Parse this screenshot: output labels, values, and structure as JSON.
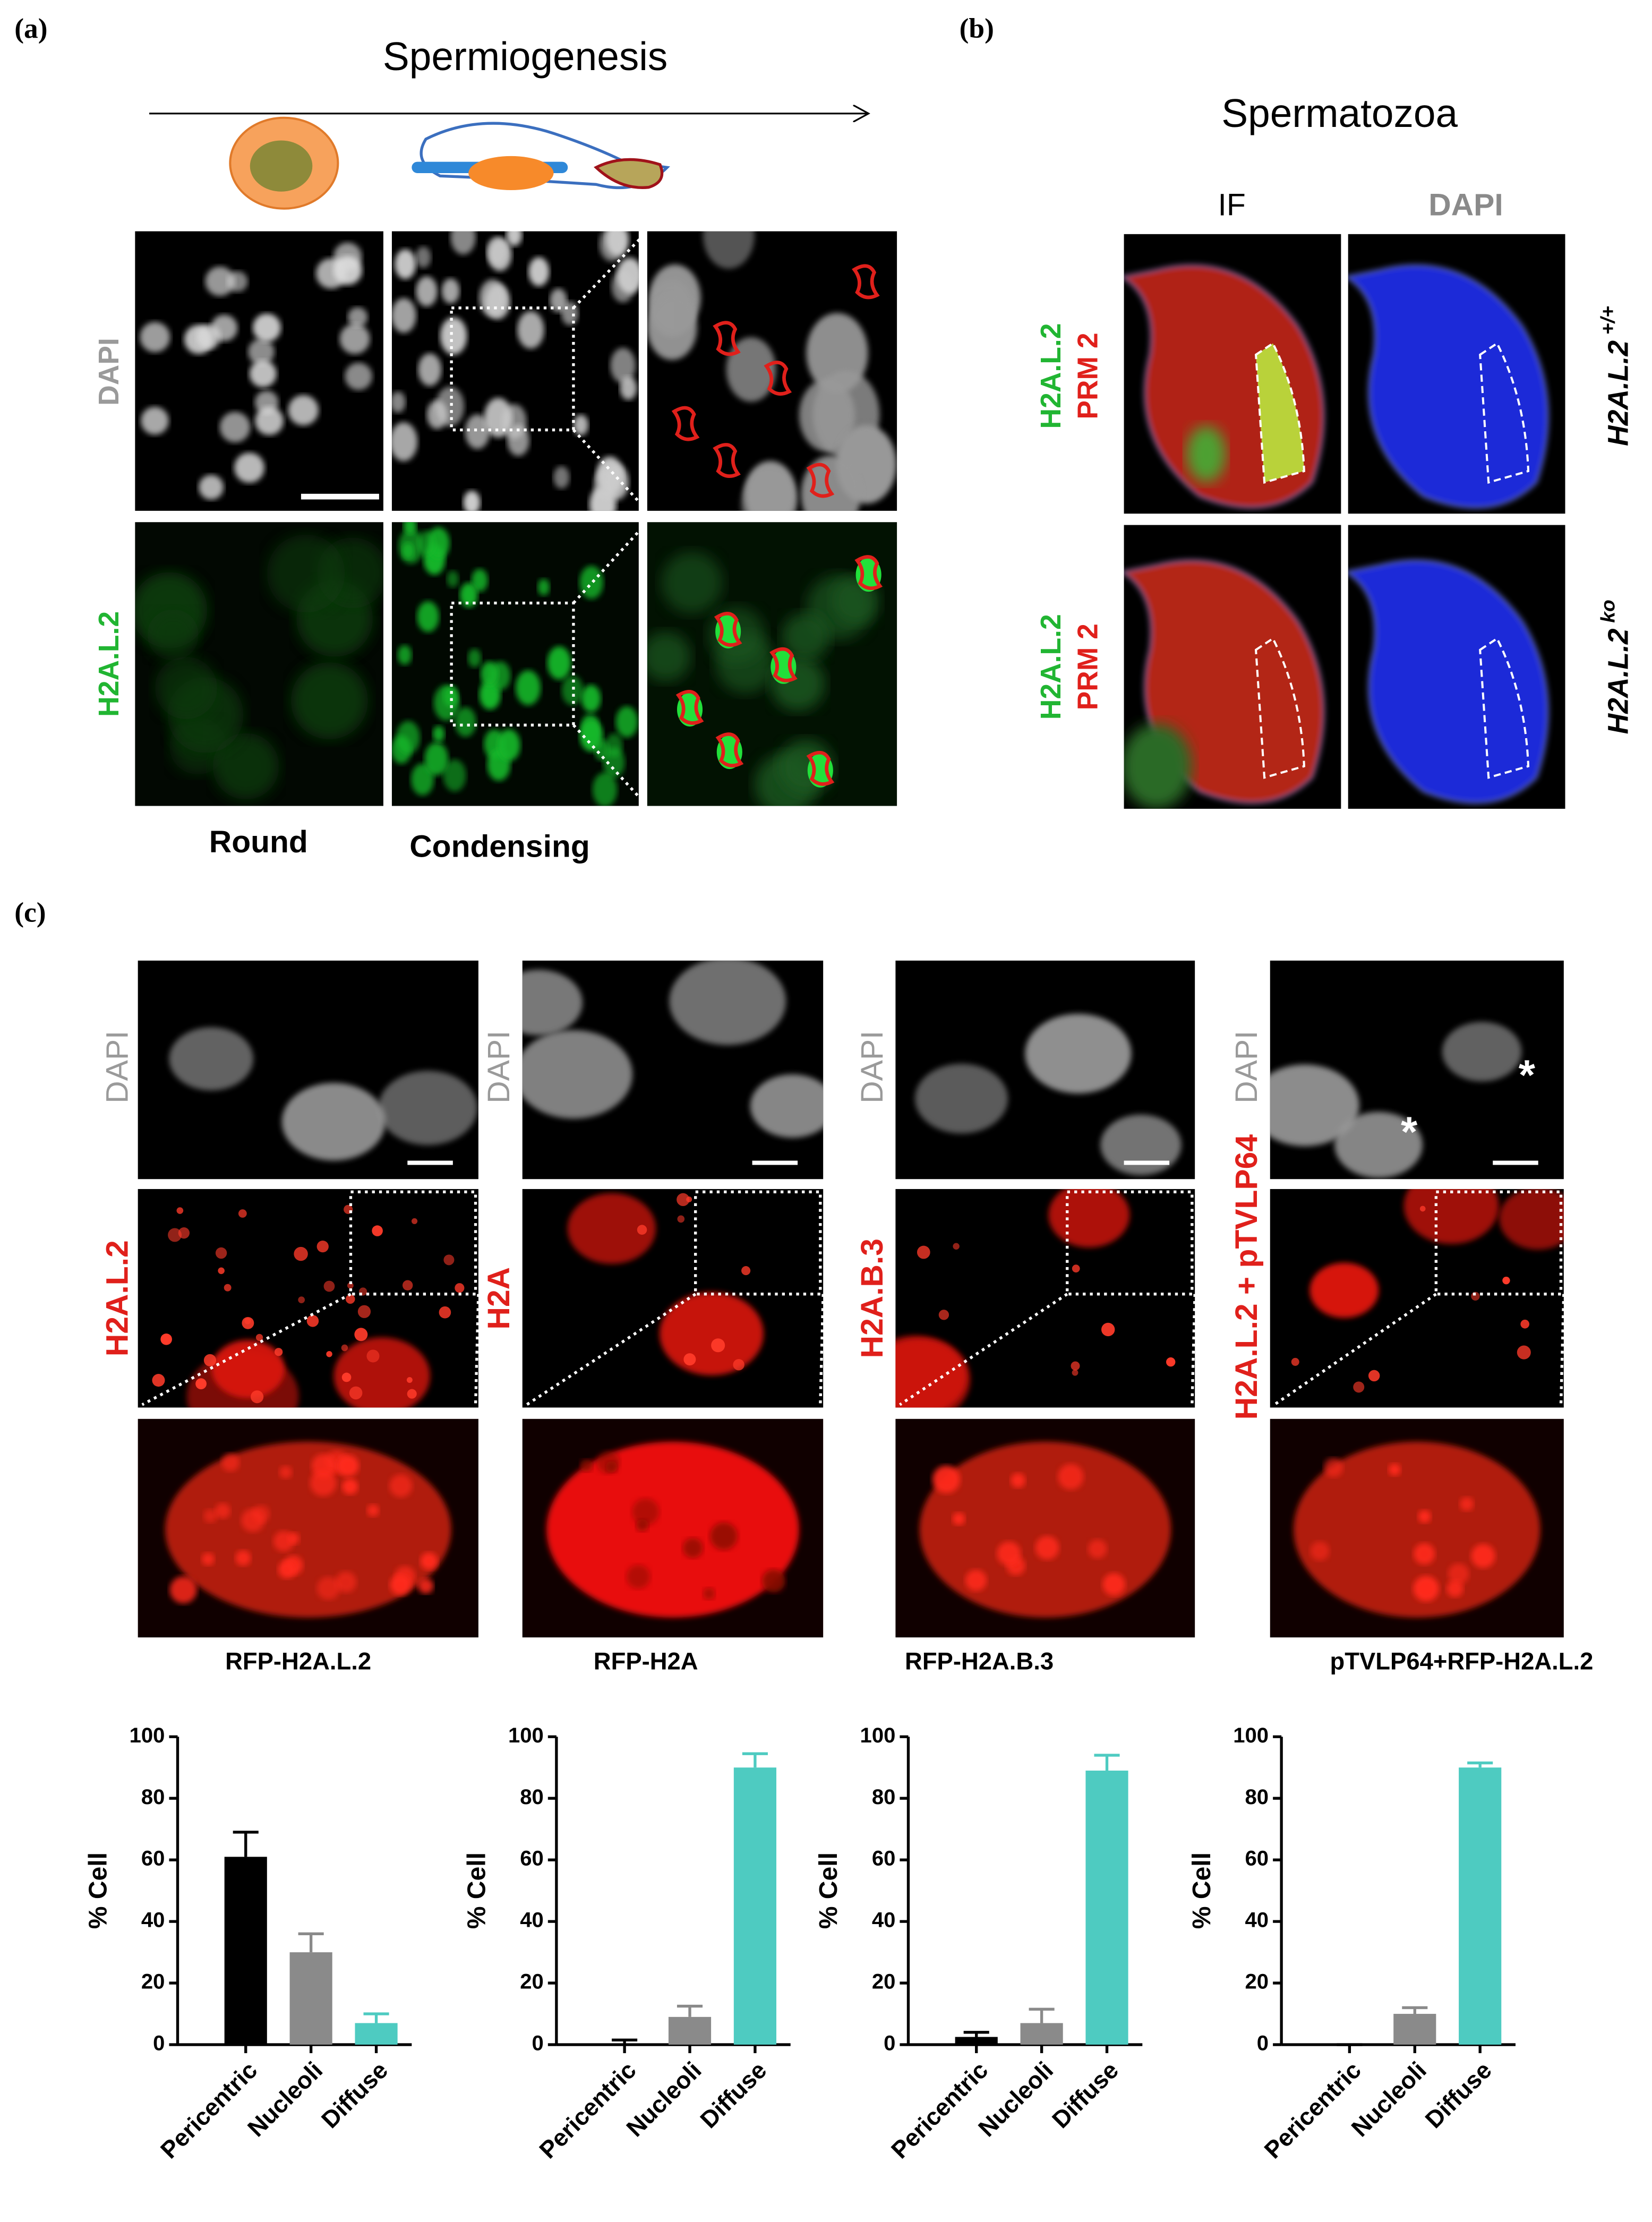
{
  "panels": {
    "a": {
      "label": "(a)",
      "title": "Spermiogenesis",
      "rows": [
        "DAPI",
        "H2A.L.2"
      ],
      "columns": [
        "Round",
        "Condensing"
      ]
    },
    "b": {
      "label": "(b)",
      "title": "Spermatozoa",
      "columns": [
        "IF",
        "DAPI"
      ],
      "stains": [
        "H2A.L.2",
        "PRM 2"
      ],
      "genotypes": [
        {
          "name": "H2A.L.2",
          "sup": "+/+"
        },
        {
          "name": "H2A.L.2",
          "sup": "ko"
        }
      ]
    },
    "c": {
      "label": "(c)",
      "dapi": "DAPI",
      "stains": [
        "H2A.L.2",
        "H2A",
        "H2A.B.3",
        "H2A.L.2 + pTVLP64"
      ],
      "asterisks": [
        "*",
        "*"
      ]
    }
  },
  "chart_data": [
    {
      "type": "bar",
      "title": "RFP-H2A.L.2",
      "ylabel": "% Cell",
      "categories": [
        "Pericentric",
        "Nucleoli",
        "Diffuse"
      ],
      "values": [
        61,
        30,
        7
      ],
      "errors": [
        8,
        6,
        3
      ],
      "colors": [
        "#000000",
        "#8a8a8a",
        "#4ecbc1"
      ],
      "ylim": [
        0,
        100
      ],
      "yticks": [
        0,
        20,
        40,
        60,
        80,
        100
      ]
    },
    {
      "type": "bar",
      "title": "RFP-H2A",
      "ylabel": "% Cell",
      "categories": [
        "Pericentric",
        "Nucleoli",
        "Diffuse"
      ],
      "values": [
        0,
        9,
        90
      ],
      "errors": [
        1.5,
        3.5,
        4.5
      ],
      "colors": [
        "#000000",
        "#8a8a8a",
        "#4ecbc1"
      ],
      "ylim": [
        0,
        100
      ],
      "yticks": [
        0,
        20,
        40,
        60,
        80,
        100
      ]
    },
    {
      "type": "bar",
      "title": "RFP-H2A.B.3",
      "ylabel": "% Cell",
      "categories": [
        "Pericentric",
        "Nucleoli",
        "Diffuse"
      ],
      "values": [
        2.5,
        7,
        89
      ],
      "errors": [
        1.5,
        4.5,
        5
      ],
      "colors": [
        "#000000",
        "#8a8a8a",
        "#4ecbc1"
      ],
      "ylim": [
        0,
        100
      ],
      "yticks": [
        0,
        20,
        40,
        60,
        80,
        100
      ]
    },
    {
      "type": "bar",
      "title": "pTVLP64+RFP-H2A.L.2",
      "ylabel": "% Cell",
      "categories": [
        "Pericentric",
        "Nucleoli",
        "Diffuse"
      ],
      "values": [
        0,
        10,
        90
      ],
      "errors": [
        0,
        2,
        1.5
      ],
      "colors": [
        "#000000",
        "#8a8a8a",
        "#4ecbc1"
      ],
      "ylim": [
        0,
        100
      ],
      "yticks": [
        0,
        20,
        40,
        60,
        80,
        100
      ]
    }
  ]
}
